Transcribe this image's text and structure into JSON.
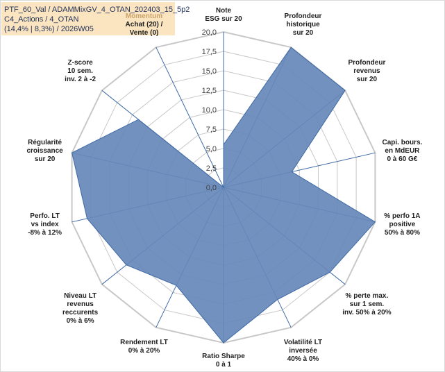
{
  "header": {
    "line1": "PTF_60_Val / ADAMMixGV_4_OTAN_202403_15_5p2",
    "line2": "C4_Actions / 4_OTAN",
    "line3": "(14,4% | 8,3%) / 2026W05"
  },
  "colors": {
    "fill": "#6688b8",
    "stroke": "#3f6aa6",
    "grid": "#c8c8c8",
    "spoke": "#3f6aa6"
  },
  "chart_data": {
    "type": "radar",
    "title": "",
    "rmin": 0,
    "rmax": 20,
    "ticks": [
      "0,0",
      "2,5",
      "5,0",
      "7,5",
      "10,0",
      "12,5",
      "15,0",
      "17,5",
      "20,0"
    ],
    "axes": [
      {
        "label": [
          "Note",
          "ESG sur 20"
        ],
        "value": 5.5
      },
      {
        "label": [
          "Profondeur",
          "historique",
          "sur 20"
        ],
        "value": 20
      },
      {
        "label": [
          "Profondeur",
          "revenus",
          "sur 20"
        ],
        "value": 20
      },
      {
        "label": [
          "Capi. bours.",
          "en MdEUR",
          "0 à 60 G€"
        ],
        "value": 9
      },
      {
        "label": [
          "% perfo 1A",
          "positive",
          "50% à 80%"
        ],
        "value": 20
      },
      {
        "label": [
          "% perte max.",
          "sur 1 sem.",
          "inv. 50% à 20%"
        ],
        "value": 17.5
      },
      {
        "label": [
          "Volatilité LT",
          "inversée",
          "40% à 0%"
        ],
        "value": 16
      },
      {
        "label": [
          "Ratio Sharpe",
          "0 à 1"
        ],
        "value": 20
      },
      {
        "label": [
          "Rendement LT",
          "0% à 20%"
        ],
        "value": 14
      },
      {
        "label": [
          "Niveau LT",
          "revenus",
          "reccurents",
          "0% à 6%"
        ],
        "value": 16
      },
      {
        "label": [
          "Perfo. LT",
          "vs index",
          "-8% à 12%"
        ],
        "value": 18
      },
      {
        "label": [
          "Régularité",
          "croissance",
          "sur 20"
        ],
        "value": 20
      },
      {
        "label": [
          "Z-score",
          "10 sem.",
          "inv. 2 à -2"
        ],
        "value": 14
      },
      {
        "label": [
          "Momentum",
          "Achat (20) /",
          "Vente (0)"
        ],
        "value": 0,
        "faded_first_line": true
      }
    ]
  }
}
